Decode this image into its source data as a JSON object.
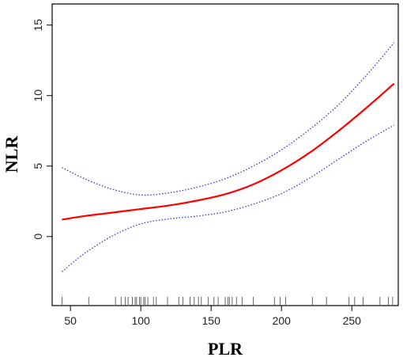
{
  "chart_data": {
    "type": "line",
    "title": "",
    "xlabel": "PLR",
    "ylabel": "NLR",
    "xlim": [
      37,
      283
    ],
    "ylim": [
      -4.9,
      16.5
    ],
    "x_ticks": [
      50,
      100,
      150,
      200,
      250
    ],
    "y_ticks": [
      0,
      5,
      10,
      15
    ],
    "grid": false,
    "legend": "none",
    "series": [
      {
        "role": "fit",
        "color": "#ff0000",
        "style": "solid",
        "x": [
          44,
          60,
          80,
          100,
          120,
          140,
          160,
          180,
          200,
          220,
          240,
          260,
          280
        ],
        "y": [
          1.2,
          1.45,
          1.7,
          1.95,
          2.2,
          2.55,
          3.0,
          3.7,
          4.7,
          5.95,
          7.45,
          9.1,
          10.85
        ]
      },
      {
        "role": "upper-ci",
        "color": "#3333cc",
        "style": "dotted",
        "x": [
          44,
          60,
          80,
          100,
          120,
          140,
          160,
          180,
          200,
          220,
          240,
          260,
          280
        ],
        "y": [
          4.9,
          4.1,
          3.35,
          2.95,
          3.1,
          3.5,
          4.1,
          5.0,
          6.15,
          7.6,
          9.3,
          11.4,
          13.75
        ]
      },
      {
        "role": "lower-ci",
        "color": "#3333cc",
        "style": "dotted",
        "x": [
          44,
          60,
          80,
          100,
          120,
          140,
          160,
          180,
          200,
          220,
          240,
          260,
          280
        ],
        "y": [
          -2.5,
          -1.2,
          0.05,
          0.9,
          1.25,
          1.45,
          1.75,
          2.3,
          3.05,
          4.15,
          5.45,
          6.75,
          7.9
        ]
      }
    ],
    "rug": [
      44,
      63,
      82,
      86,
      89,
      91,
      94,
      96,
      97,
      99,
      100,
      102,
      103,
      105,
      109,
      111,
      119,
      127,
      130,
      135,
      138,
      141,
      143,
      148,
      152,
      155,
      160,
      162,
      163,
      165,
      168,
      172,
      180,
      195,
      199,
      203,
      222,
      232,
      248,
      252,
      258,
      270,
      276,
      279
    ]
  }
}
